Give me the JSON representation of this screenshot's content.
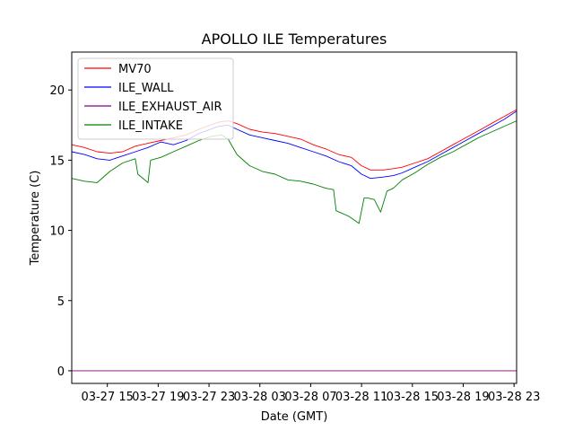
{
  "chart_data": {
    "type": "line",
    "title": "APOLLO ILE Temperatures",
    "xlabel": "Date (GMT)",
    "ylabel": "Temperature (C)",
    "x_unit": "hours since 03-27 00:00 GMT",
    "xlim": [
      12.2,
      47.2
    ],
    "ylim": [
      -0.9,
      22.7
    ],
    "yticks": [
      0,
      5,
      10,
      15,
      20
    ],
    "xticks": [
      {
        "x": 15,
        "label": "03-27 15"
      },
      {
        "x": 19,
        "label": "03-27 19"
      },
      {
        "x": 23,
        "label": "03-27 23"
      },
      {
        "x": 27,
        "label": "03-28 03"
      },
      {
        "x": 31,
        "label": "03-28 07"
      },
      {
        "x": 35,
        "label": "03-28 11"
      },
      {
        "x": 39,
        "label": "03-28 15"
      },
      {
        "x": 43,
        "label": "03-28 19"
      },
      {
        "x": 47,
        "label": "03-28 23"
      }
    ],
    "legend": "top-left",
    "series": [
      {
        "name": "MV70",
        "color": "#ff0000",
        "x": [
          12.2,
          13.2,
          14.2,
          15.2,
          16.2,
          17.2,
          18.2,
          19.2,
          20.2,
          21.2,
          22.2,
          23.7,
          24.5,
          25.2,
          26.2,
          27.2,
          28.2,
          29.2,
          30.2,
          31.2,
          32.2,
          33.2,
          34.2,
          35.0,
          35.7,
          36.7,
          37.5,
          38.2,
          39.2,
          40.2,
          41.2,
          42.2,
          43.2,
          44.2,
          45.2,
          46.2,
          47.2
        ],
        "y": [
          16.1,
          15.9,
          15.6,
          15.5,
          15.6,
          16.0,
          16.2,
          16.4,
          16.6,
          16.8,
          17.2,
          17.7,
          17.8,
          17.6,
          17.2,
          17.0,
          16.9,
          16.7,
          16.5,
          16.1,
          15.8,
          15.4,
          15.2,
          14.6,
          14.3,
          14.3,
          14.4,
          14.5,
          14.8,
          15.1,
          15.6,
          16.1,
          16.6,
          17.1,
          17.6,
          18.1,
          18.6
        ]
      },
      {
        "name": "ILE_WALL",
        "color": "#0000ff",
        "x": [
          12.2,
          13.2,
          14.2,
          15.2,
          16.2,
          17.2,
          18.2,
          19.2,
          20.2,
          21.2,
          22.2,
          23.7,
          24.5,
          25.2,
          26.2,
          27.2,
          28.2,
          29.2,
          30.2,
          31.2,
          32.2,
          33.2,
          34.2,
          35.0,
          35.7,
          36.7,
          37.5,
          38.2,
          39.2,
          40.2,
          41.2,
          42.2,
          43.2,
          44.2,
          45.2,
          46.2,
          47.2
        ],
        "y": [
          15.6,
          15.4,
          15.1,
          15.0,
          15.3,
          15.6,
          15.9,
          16.3,
          16.1,
          16.4,
          16.9,
          17.4,
          17.5,
          17.2,
          16.8,
          16.6,
          16.4,
          16.2,
          15.9,
          15.6,
          15.3,
          14.9,
          14.6,
          14.0,
          13.7,
          13.8,
          13.9,
          14.1,
          14.5,
          14.9,
          15.4,
          15.9,
          16.4,
          16.9,
          17.4,
          17.9,
          18.5
        ]
      },
      {
        "name": "ILE_EXHAUST_AIR",
        "color": "#800080",
        "x": [
          12.2,
          47.2
        ],
        "y": [
          0.0,
          0.0
        ]
      },
      {
        "name": "ILE_INTAKE",
        "color": "#008000",
        "x": [
          12.2,
          13.2,
          14.2,
          15.2,
          16.2,
          17.2,
          17.4,
          18.2,
          18.4,
          19.2,
          20.2,
          21.2,
          22.2,
          23.2,
          24.0,
          24.5,
          25.2,
          26.2,
          27.2,
          28.2,
          29.2,
          30.2,
          31.2,
          32.2,
          32.8,
          33.0,
          34.0,
          34.8,
          35.2,
          35.5,
          36.0,
          36.5,
          37.0,
          37.5,
          38.2,
          39.2,
          40.2,
          41.2,
          42.2,
          43.2,
          44.2,
          45.2,
          46.2,
          47.2
        ],
        "y": [
          13.7,
          13.5,
          13.4,
          14.2,
          14.8,
          15.1,
          14.0,
          13.4,
          15.0,
          15.2,
          15.6,
          16.0,
          16.4,
          16.7,
          16.8,
          16.5,
          15.4,
          14.6,
          14.2,
          14.0,
          13.6,
          13.5,
          13.3,
          13.0,
          12.9,
          11.4,
          11.0,
          10.5,
          12.3,
          12.3,
          12.2,
          11.3,
          12.8,
          13.0,
          13.6,
          14.1,
          14.7,
          15.2,
          15.6,
          16.1,
          16.6,
          17.0,
          17.4,
          17.8
        ]
      }
    ]
  }
}
